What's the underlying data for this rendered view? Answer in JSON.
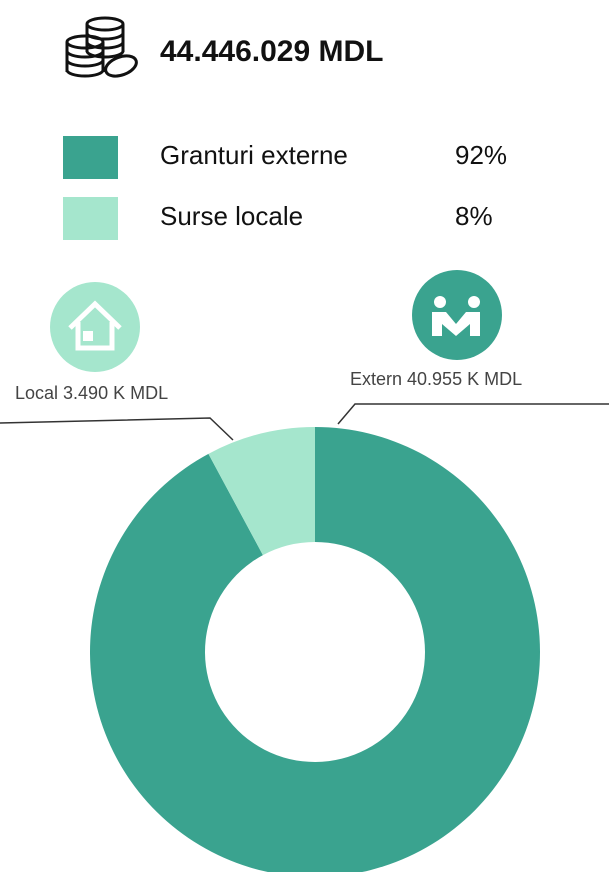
{
  "chart_data": {
    "type": "donut",
    "title": "44.446.029 MDL",
    "categories": [
      "Granturi externe",
      "Surse locale"
    ],
    "values": [
      40955,
      3490
    ],
    "value_labels": [
      "Extern 40.955 K MDL",
      "Local 3.490 K MDL"
    ],
    "percents": [
      92,
      8
    ],
    "percent_labels": [
      "92%",
      "8%"
    ],
    "colors": [
      "#3aa38f",
      "#a5e6cd"
    ]
  }
}
